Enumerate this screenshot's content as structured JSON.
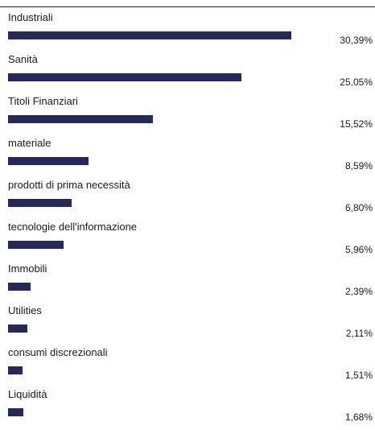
{
  "chart_data": {
    "type": "bar",
    "orientation": "horizontal",
    "bar_color": "#25285a",
    "categories": [
      "Industriali",
      "Sanità",
      "Titoli Finanziari",
      "materiale",
      "prodotti di prima necessità",
      "tecnologie dell'informazione",
      "Immobili",
      "Utilities",
      "consumi discrezionali",
      "Liquidità"
    ],
    "values": [
      30.39,
      25.05,
      15.52,
      8.59,
      6.8,
      5.96,
      2.39,
      2.11,
      1.51,
      1.68
    ],
    "value_labels": [
      "30,39%",
      "25,05%",
      "15,52%",
      "8,59%",
      "6,80%",
      "5,96%",
      "2,39%",
      "2,11%",
      "1,51%",
      "1,68%"
    ],
    "xlim": [
      0,
      34.5
    ],
    "grid": false,
    "legend": "none"
  }
}
